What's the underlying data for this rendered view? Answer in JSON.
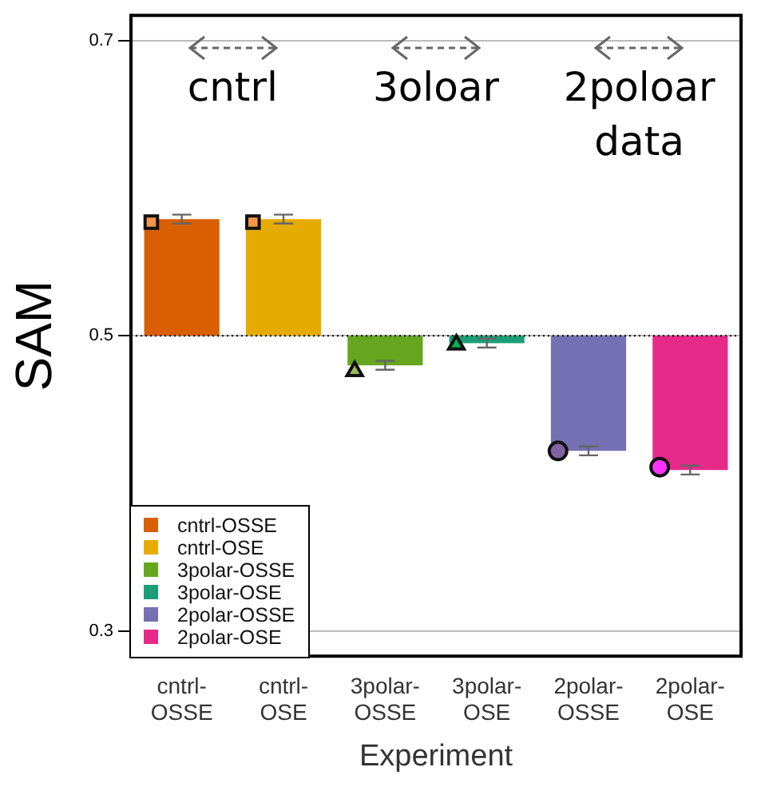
{
  "chart_data": {
    "type": "bar",
    "xlabel": "Experiment",
    "ylabel": "SAM",
    "categories": [
      "cntrl-OSSE",
      "cntrl-OSE",
      "3polar-OSSE",
      "3polar-OSE",
      "2polar-OSSE",
      "2polar-OSE"
    ],
    "ylim": [
      0.283,
      0.717
    ],
    "yticks": [
      0.3,
      0.5,
      0.7
    ],
    "grid": "y",
    "legend": "bottom left",
    "annotations": [
      "cntrl",
      "3oloar",
      "2poloar data"
    ],
    "ref_lines": [
      {
        "axis": "y",
        "value": 0.5,
        "color": "#000000",
        "line_style": "dotted"
      }
    ],
    "series": [
      {
        "name": "cntrl-OSSE",
        "color": "#d95f02",
        "values": [
          0.079,
          null,
          null,
          null,
          null,
          null
        ],
        "base": [
          0.5,
          null,
          null,
          null,
          null,
          null
        ],
        "errors": [
          0.003,
          null,
          null,
          null,
          null,
          null
        ]
      },
      {
        "name": "cntrl-OSE",
        "color": "#e6ab02",
        "values": [
          null,
          0.079,
          null,
          null,
          null,
          null
        ],
        "base": [
          null,
          0.5,
          null,
          null,
          null,
          null
        ],
        "errors": [
          null,
          0.003,
          null,
          null,
          null,
          null
        ]
      },
      {
        "name": "3polar-OSSE",
        "color": "#66a61e",
        "values": [
          null,
          null,
          -0.02,
          null,
          null,
          null
        ],
        "base": [
          null,
          null,
          0.5,
          null,
          null,
          null
        ],
        "errors": [
          null,
          null,
          0.003,
          null,
          null,
          null
        ]
      },
      {
        "name": "3polar-OSE",
        "color": "#1b9e77",
        "values": [
          null,
          null,
          null,
          -0.005,
          null,
          null
        ],
        "base": [
          null,
          null,
          null,
          0.5,
          null,
          null
        ],
        "errors": [
          null,
          null,
          null,
          0.003,
          null,
          null
        ]
      },
      {
        "name": "2polar-OSSE",
        "color": "#7570b3",
        "values": [
          null,
          null,
          null,
          null,
          -0.078,
          null
        ],
        "base": [
          null,
          null,
          null,
          null,
          0.5,
          null
        ],
        "errors": [
          null,
          null,
          null,
          null,
          0.003,
          null
        ]
      },
      {
        "name": "2polar-OSE",
        "color": "#e7298a",
        "values": [
          null,
          null,
          null,
          null,
          null,
          -0.091
        ],
        "base": [
          null,
          null,
          null,
          null,
          null,
          0.5
        ],
        "errors": [
          null,
          null,
          null,
          null,
          null,
          0.003
        ]
      },
      {
        "type": "scatter",
        "x": [
          "cntrl-OSSE"
        ],
        "values": [
          0.577
        ],
        "color": "#f4964a",
        "marker": "square"
      },
      {
        "type": "scatter",
        "x": [
          "cntrl-OSE"
        ],
        "values": [
          0.577
        ],
        "color": "#f79646",
        "marker": "square"
      },
      {
        "type": "scatter",
        "x": [
          "3polar-OSSE"
        ],
        "values": [
          0.476
        ],
        "color": "#9bbb59",
        "marker": "triangle"
      },
      {
        "type": "scatter",
        "x": [
          "3polar-OSE"
        ],
        "values": [
          0.494
        ],
        "color": "#00b050",
        "marker": "triangle"
      },
      {
        "type": "scatter",
        "x": [
          "2polar-OSSE"
        ],
        "values": [
          0.422
        ],
        "color": "#8064a2",
        "marker": "circle"
      },
      {
        "type": "scatter",
        "x": [
          "2polar-OSE"
        ],
        "values": [
          0.411
        ],
        "color": "#ff33ff",
        "marker": "circle"
      }
    ]
  }
}
